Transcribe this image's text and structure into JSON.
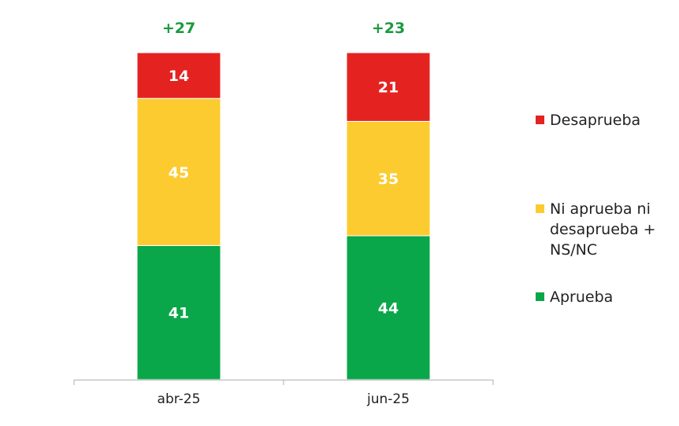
{
  "chart_data": {
    "type": "bar",
    "stacked": true,
    "categories": [
      "abr-25",
      "jun-25"
    ],
    "series": [
      {
        "name": "Aprueba",
        "color": "#0aa64a",
        "values": [
          41,
          44
        ]
      },
      {
        "name": "Ni aprueba ni desaprueba + NS/NC",
        "color": "#fccb30",
        "values": [
          45,
          35
        ]
      },
      {
        "name": "Desaprueba",
        "color": "#e42320",
        "values": [
          14,
          21
        ]
      }
    ],
    "net_labels": [
      "+27",
      "+23"
    ],
    "net_color": "#1a9a3e",
    "ylim": [
      0,
      100
    ],
    "grid": false,
    "legend_position": "right",
    "title": "",
    "xlabel": "",
    "ylabel": ""
  }
}
